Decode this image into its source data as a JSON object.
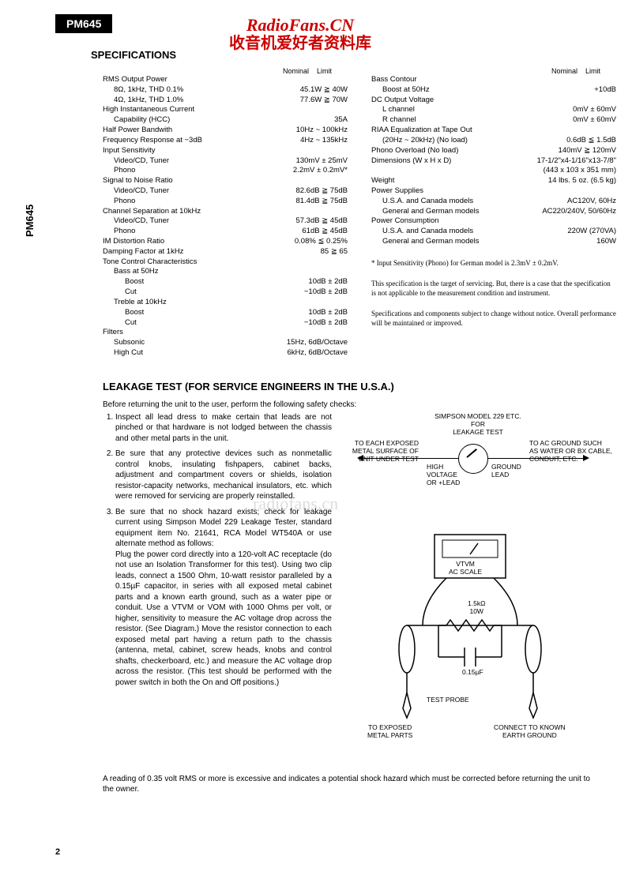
{
  "model": "PM645",
  "watermark": {
    "line1": "RadioFans.CN",
    "line2": "收音机爱好者资料库",
    "mid": "radiofans.cn"
  },
  "side_label": "PM645",
  "spec_title": "SPECIFICATIONS",
  "head_nominal": "Nominal",
  "head_limit": "Limit",
  "left_rows": [
    {
      "l": "RMS Output Power",
      "v": ""
    },
    {
      "l": "8Ω, 1kHz, THD 0.1%",
      "v": "45.1W ≧ 40W",
      "i": 1
    },
    {
      "l": "4Ω, 1kHz, THD 1.0%",
      "v": "77.6W ≧ 70W",
      "i": 1
    },
    {
      "l": "High Instantaneous Current",
      "v": ""
    },
    {
      "l": "Capability (HCC)",
      "v": "35A",
      "i": 1
    },
    {
      "l": "Half Power Bandwith",
      "v": "10Hz ~ 100kHz"
    },
    {
      "l": "Frequency Response at −3dB",
      "v": "4Hz ~ 135kHz"
    },
    {
      "l": "Input Sensitivity",
      "v": ""
    },
    {
      "l": "Video/CD, Tuner",
      "v": "130mV ± 25mV",
      "i": 1
    },
    {
      "l": "Phono",
      "v": "2.2mV ± 0.2mV*",
      "i": 1
    },
    {
      "l": "Signal to Noise Ratio",
      "v": ""
    },
    {
      "l": "Video/CD, Tuner",
      "v": "82.6dB ≧ 75dB",
      "i": 1
    },
    {
      "l": "Phono",
      "v": "81.4dB ≧ 75dB",
      "i": 1
    },
    {
      "l": "Channel Separation at 10kHz",
      "v": ""
    },
    {
      "l": "Video/CD, Tuner",
      "v": "57.3dB ≧ 45dB",
      "i": 1
    },
    {
      "l": "Phono",
      "v": "61dB ≧ 45dB",
      "i": 1
    },
    {
      "l": "IM Distortion Ratio",
      "v": "0.08% ≦ 0.25%"
    },
    {
      "l": "Damping Factor at 1kHz",
      "v": "85 ≧ 65"
    },
    {
      "l": "Tone Control Characteristics",
      "v": ""
    },
    {
      "l": "Bass at 50Hz",
      "v": "",
      "i": 1
    },
    {
      "l": "Boost",
      "v": "10dB ± 2dB",
      "i": 2
    },
    {
      "l": "Cut",
      "v": "−10dB ± 2dB",
      "i": 2
    },
    {
      "l": "Treble at 10kHz",
      "v": "",
      "i": 1
    },
    {
      "l": "Boost",
      "v": "10dB ± 2dB",
      "i": 2
    },
    {
      "l": "Cut",
      "v": "−10dB ± 2dB",
      "i": 2
    },
    {
      "l": "Filters",
      "v": ""
    },
    {
      "l": "Subsonic",
      "v": "15Hz, 6dB/Octave",
      "i": 1
    },
    {
      "l": "High Cut",
      "v": "6kHz, 6dB/Octave",
      "i": 1
    }
  ],
  "right_rows": [
    {
      "l": "Bass Contour",
      "v": ""
    },
    {
      "l": "Boost at 50Hz",
      "v": "+10dB",
      "i": 1
    },
    {
      "l": "DC Output Voltage",
      "v": ""
    },
    {
      "l": "L channel",
      "v": "0mV ± 60mV",
      "i": 1
    },
    {
      "l": "R channel",
      "v": "0mV ± 60mV",
      "i": 1
    },
    {
      "l": "RIAA Equalization at Tape Out",
      "v": ""
    },
    {
      "l": "(20Hz ~ 20kHz) (No load)",
      "v": "0.6dB ≦ 1.5dB",
      "i": 1
    },
    {
      "l": "Phono Overload (No load)",
      "v": "140mV ≧ 120mV"
    },
    {
      "l": "Dimensions (W x H x D)",
      "v": "17-1/2\"x4-1/16\"x13-7/8\""
    },
    {
      "l": "",
      "v": "(443 x 103 x 351 mm)"
    },
    {
      "l": "Weight",
      "v": "14 lbs. 5 oz. (6.5 kg)"
    },
    {
      "l": "Power Supplies",
      "v": ""
    },
    {
      "l": "U.S.A. and Canada models",
      "v": "AC120V, 60Hz",
      "i": 1
    },
    {
      "l": "General and German models",
      "v": "AC220/240V, 50/60Hz",
      "i": 1
    },
    {
      "l": "Power Consumption",
      "v": ""
    },
    {
      "l": "U.S.A. and Canada models",
      "v": "220W (270VA)",
      "i": 1
    },
    {
      "l": "General and German models",
      "v": "160W",
      "i": 1
    }
  ],
  "note1": "* Input Sensitivity (Phono) for German model is 2.3mV ± 0.2mV.",
  "note2": "This specification is the target of servicing. But, there is a case that the specification is not applicable to the measurement condition and instrument.",
  "note3": "Specifications and components subject to change without notice. Overall performance will be maintained or improved.",
  "leakage_title": "LEAKAGE  TEST  (FOR SERVICE ENGINEERS IN THE U.S.A.)",
  "leakage_intro": "Before returning the unit to the user, perform the following safety checks:",
  "leakage_item1": "Inspect all lead dress to make certain that leads are not pinched or that hardware is not lodged between the chassis and other metal parts in the unit.",
  "leakage_item2": "Be sure that any protective devices such as nonmetallic control knobs, insulating fishpapers, cabinet backs, adjustment and compartment covers or shields, isolation resistor-capacity networks, mechanical insulators, etc. which were removed for servicing are properly reinstalled.",
  "leakage_item3a": "Be sure that no shock hazard exists; check for leakage current using Simpson Model 229 Leakage Tester, standard equipment item No. 21641, RCA Model WT540A or use alternate method as follows:",
  "leakage_item3b": "Plug the power cord directly into a 120-volt AC receptacle (do not use an Isolation Transformer for this test). Using two clip leads, connect a 1500 Ohm, 10-watt resistor paralleled by a 0.15µF capacitor, in series with all exposed metal cabinet parts and a known earth ground, such as a water pipe or conduit. Use a VTVM or VOM with 1000 Ohms per volt, or higher, sensitivity to measure the AC voltage drop across the resistor. (See Diagram.) Move the resistor connection to each exposed metal part having a return path to the chassis (antenna, metal, cabinet, screw heads, knobs and control shafts, checkerboard, etc.) and measure the AC voltage drop across the resistor. (This test should be performed with the power switch in both the On and Off positions.)",
  "leakage_final": "A reading of 0.35 volt RMS or more  is excessive and indicates a potential shock hazard which must be corrected before returning the unit to the owner.",
  "d1": {
    "top": "SIMPSON MODEL 229 ETC. FOR\nLEAKAGE TEST",
    "left": "TO EACH EXPOSED\nMETAL SURFACE OF\nUNIT UNDER TEST",
    "right": "TO AC GROUND SUCH\nAS WATER OR BX CABLE,\nCONDUIT, ETC.",
    "hv": "HIGH\nVOLTAGE\nOR +LEAD",
    "gnd": "GROUND\nLEAD"
  },
  "d2": {
    "vtvm": "VTVM\nAC SCALE",
    "res": "1.5kΩ\n10W",
    "cap": "0.15µF",
    "probe": "TEST PROBE",
    "tl": "TO EXPOSED\nMETAL PARTS",
    "tr": "CONNECT TO KNOWN\nEARTH GROUND"
  },
  "page_num": "2"
}
